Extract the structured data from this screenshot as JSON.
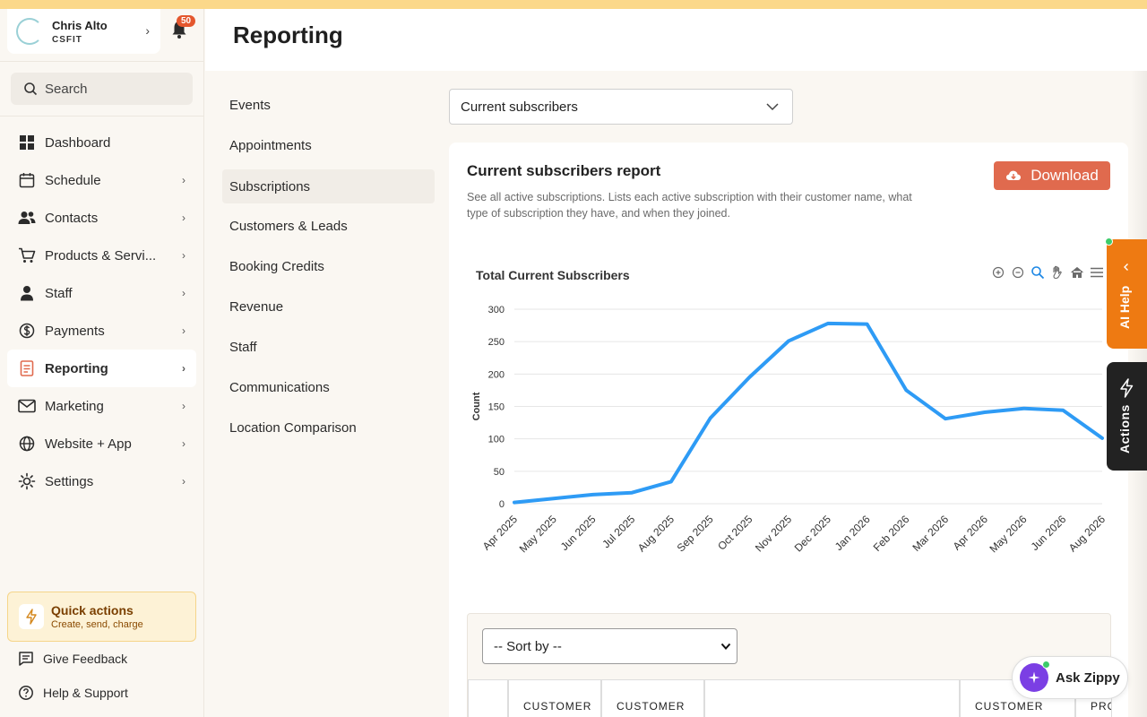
{
  "user": {
    "name": "Chris Alto",
    "org": "CSFIT"
  },
  "notifications": {
    "count": "50"
  },
  "search": {
    "placeholder": "Search"
  },
  "nav": [
    {
      "label": "Dashboard",
      "icon": "dashboard-icon",
      "chevron": false,
      "active": false
    },
    {
      "label": "Schedule",
      "icon": "calendar-icon",
      "chevron": true,
      "active": false
    },
    {
      "label": "Contacts",
      "icon": "people-icon",
      "chevron": true,
      "active": false
    },
    {
      "label": "Products & Servi...",
      "icon": "cart-icon",
      "chevron": true,
      "active": false
    },
    {
      "label": "Staff",
      "icon": "person-icon",
      "chevron": true,
      "active": false
    },
    {
      "label": "Payments",
      "icon": "dollar-icon",
      "chevron": true,
      "active": false
    },
    {
      "label": "Reporting",
      "icon": "report-icon",
      "chevron": true,
      "active": true
    },
    {
      "label": "Marketing",
      "icon": "mail-icon",
      "chevron": true,
      "active": false
    },
    {
      "label": "Website + App",
      "icon": "globe-icon",
      "chevron": true,
      "active": false
    },
    {
      "label": "Settings",
      "icon": "gear-icon",
      "chevron": true,
      "active": false
    }
  ],
  "quick_actions": {
    "title": "Quick actions",
    "subtitle": "Create, send, charge"
  },
  "footer": {
    "feedback": "Give Feedback",
    "help": "Help & Support"
  },
  "page": {
    "title": "Reporting"
  },
  "subnav": [
    "Events",
    "Appointments",
    "Subscriptions",
    "Customers & Leads",
    "Booking Credits",
    "Revenue",
    "Staff",
    "Communications",
    "Location Comparison"
  ],
  "subnav_active": 2,
  "report_select": {
    "value": "Current subscribers"
  },
  "report": {
    "title": "Current subscribers report",
    "description": "See all active subscriptions. Lists each active subscription with their customer name, what type of subscription they have, and when they joined.",
    "download_label": "Download"
  },
  "chart_data": {
    "type": "line",
    "title": "Total Current Subscribers",
    "xlabel": "",
    "ylabel": "Count",
    "ylim": [
      0,
      300
    ],
    "yticks": [
      0,
      50,
      100,
      150,
      200,
      250,
      300
    ],
    "grid": true,
    "categories": [
      "Apr 2025",
      "May 2025",
      "Jun 2025",
      "Jul 2025",
      "Aug 2025",
      "Sep 2025",
      "Oct 2025",
      "Nov 2025",
      "Dec 2025",
      "Jan 2026",
      "Feb 2026",
      "Mar 2026",
      "Apr 2026",
      "May 2026",
      "Jun 2026",
      "Aug 2026"
    ],
    "series": [
      {
        "values": [
          2,
          8,
          14,
          17,
          34,
          132,
          195,
          251,
          278,
          277,
          175,
          131,
          141,
          147,
          144,
          101
        ],
        "color": "#2e9bf5"
      }
    ]
  },
  "table": {
    "sort_placeholder": "-- Sort by --",
    "columns": [
      "",
      "CUSTOMER",
      "CUSTOMER",
      "",
      "CUSTOMER",
      "PRODU"
    ]
  },
  "helpers": {
    "ai_help": "AI Help",
    "actions": "Actions",
    "zippy": "Ask Zippy"
  },
  "colors": {
    "accent": "#e06a4e",
    "line": "#2e9bf5",
    "ai": "#ee7a12",
    "zippy": "#7b3fe4"
  }
}
